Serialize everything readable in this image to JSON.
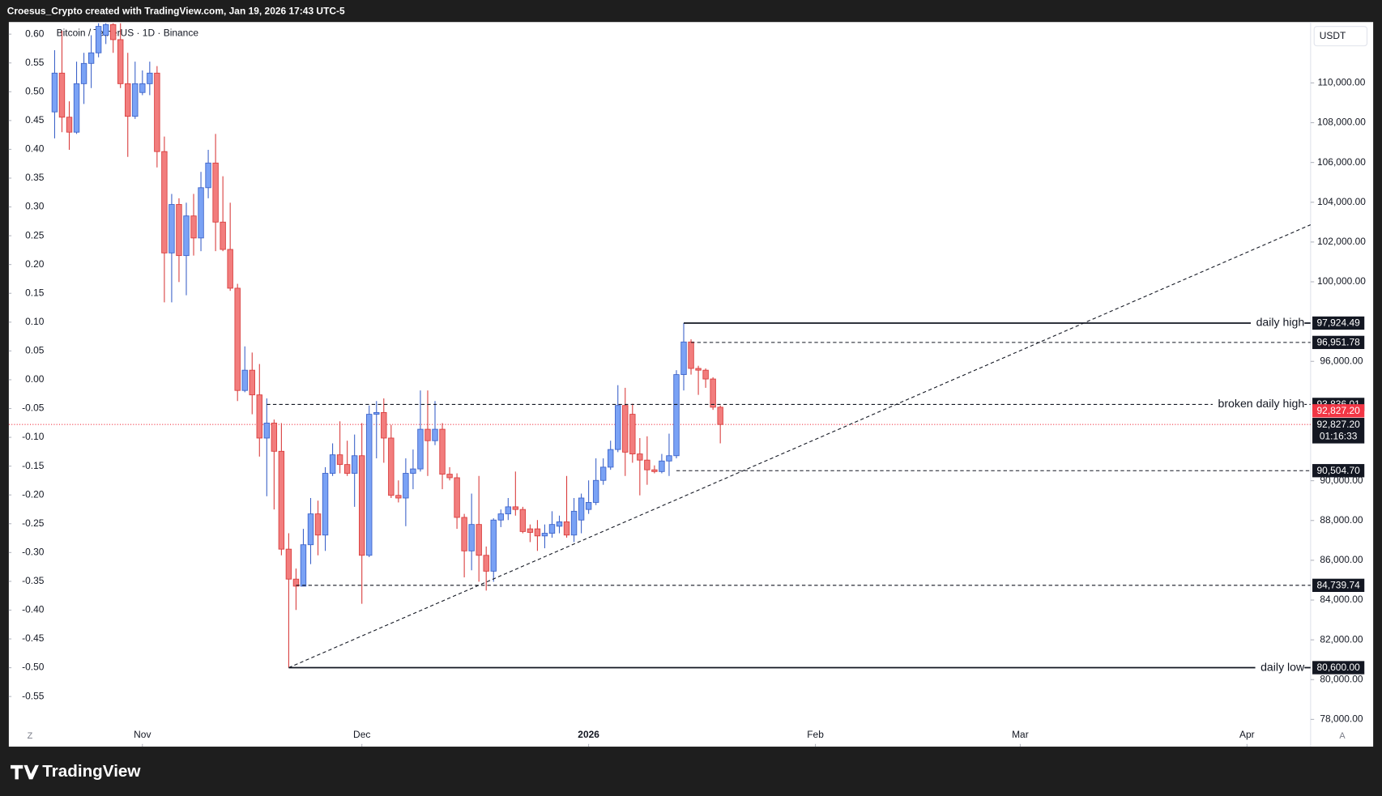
{
  "header": {
    "credit": "Croesus_Crypto created with TradingView.com, Jan 19, 2026 17:43 UTC-5",
    "logo": "TradingView"
  },
  "chart_data": {
    "type": "candlestick",
    "symbol": "Bitcoin / TetherUS · 1D · Binance",
    "currency": "USDT",
    "scale_buttons": [
      "Z",
      "A"
    ],
    "up_color": "#7aa2f5",
    "up_border": "#3d63c9",
    "down_color": "#f27d7d",
    "down_border": "#d93d3d",
    "xlim": [
      -6.265,
      171.7
    ],
    "xticks": [
      {
        "value": 12,
        "label": "Nov"
      },
      {
        "value": 42,
        "label": "Dec"
      },
      {
        "value": 73,
        "label": "2026"
      },
      {
        "value": 104,
        "label": "Feb"
      },
      {
        "value": 132,
        "label": "Mar"
      },
      {
        "value": 163,
        "label": "Apr"
      }
    ],
    "ylim": [
      76630,
      113060
    ],
    "yticks": [
      {
        "value": 110000,
        "label": "110,000.00"
      },
      {
        "value": 108000,
        "label": "108,000.00"
      },
      {
        "value": 106000,
        "label": "106,000.00"
      },
      {
        "value": 104000,
        "label": "104,000.00"
      },
      {
        "value": 102000,
        "label": "102,000.00"
      },
      {
        "value": 100000,
        "label": "100,000.00"
      },
      {
        "value": 96000,
        "label": "96,000.00"
      },
      {
        "value": 90000,
        "label": "90,000.00"
      },
      {
        "value": 88000,
        "label": "88,000.00"
      },
      {
        "value": 86000,
        "label": "86,000.00"
      },
      {
        "value": 84000,
        "label": "84,000.00"
      },
      {
        "value": 82000,
        "label": "82,000.00"
      },
      {
        "value": 80000,
        "label": "80,000.00"
      },
      {
        "value": 78000,
        "label": "78,000.00"
      }
    ],
    "y2lim": [
      -0.637,
      0.621
    ],
    "y2ticks": [
      {
        "value": 0.6,
        "label": "0.60"
      },
      0.55,
      {
        "value": 0.5,
        "label": "0.50"
      },
      0.45,
      {
        "value": 0.4,
        "label": "0.40"
      },
      0.35,
      {
        "value": 0.3,
        "label": "0.30"
      },
      0.25,
      {
        "value": 0.2,
        "label": "0.20"
      },
      0.15,
      {
        "value": 0.1,
        "label": "0.10"
      },
      0.05,
      {
        "value": 0,
        "label": "0.00"
      },
      -0.05,
      {
        "value": -0.1,
        "label": "-0.10"
      },
      -0.15,
      {
        "value": -0.2,
        "label": "-0.20"
      },
      -0.25,
      {
        "value": -0.3,
        "label": "-0.30"
      },
      -0.35,
      {
        "value": -0.4,
        "label": "-0.40"
      },
      -0.45,
      {
        "value": -0.5,
        "label": "-0.50"
      },
      -0.55
    ],
    "open": [
      108542,
      110492,
      108276,
      107523,
      109960,
      110980,
      111512,
      112398,
      112930,
      112176,
      109960,
      108320,
      109517,
      109960,
      110492,
      106548,
      101451,
      103888,
      101318,
      103312,
      102204,
      104731,
      105972,
      103002,
      101628,
      99678,
      94537,
      95556,
      94315,
      92144,
      92897,
      91479,
      86559,
      85052,
      84698,
      86781,
      88332,
      87268,
      90371,
      91302,
      90814,
      90371,
      91257,
      86249,
      93340,
      93429,
      92144,
      89263,
      89130,
      90371,
      90592,
      92587,
      92011,
      92587,
      90327,
      90149,
      88155,
      86471,
      87800,
      86249,
      85451,
      88022,
      88332,
      88687,
      88554,
      87579,
      87579,
      87224,
      87357,
      87712,
      87933,
      87268,
      88022,
      88554,
      88908,
      90016,
      90681,
      91568,
      93784,
      93340,
      91346,
      91036,
      90548,
      90460,
      90991,
      91257,
      95335,
      96975,
      95645,
      95556,
      95113,
      93695
    ],
    "high": [
      111644,
      112620,
      109074,
      111068,
      111512,
      112398,
      113000,
      113000,
      113000,
      113000,
      111512,
      111068,
      110625,
      111068,
      110847,
      107301,
      104420,
      104199,
      103977,
      104420,
      105528,
      106636,
      107434,
      105307,
      103977,
      99900,
      96753,
      96443,
      95867,
      94138,
      93074,
      92897,
      87357,
      85584,
      87579,
      89130,
      88997,
      90681,
      91878,
      92986,
      92011,
      92321,
      92897,
      93784,
      94005,
      94138,
      92808,
      90016,
      91124,
      91568,
      94537,
      94537,
      94005,
      92897,
      90681,
      90371,
      88332,
      89352,
      90238,
      86692,
      88111,
      88554,
      89130,
      90460,
      88687,
      87800,
      88022,
      87800,
      88465,
      88244,
      90238,
      89130,
      89352,
      90016,
      91124,
      91124,
      92011,
      94803,
      94670,
      93872,
      92144,
      92232,
      90770,
      91346,
      92365,
      95556,
      97924.49,
      97108,
      95778,
      95645,
      95202,
      93784
    ],
    "low": [
      107212,
      107523,
      106636,
      107434,
      108941,
      109739,
      111290,
      111955,
      111512,
      109739,
      106282,
      108188,
      109384,
      109384,
      105750,
      98969,
      98969,
      99988,
      99324,
      101318,
      101540,
      104199,
      101540,
      101540,
      99545,
      94005,
      94448,
      93340,
      91213,
      89219,
      88554,
      86249,
      80600,
      83501,
      84698,
      85806,
      86249,
      86471,
      90238,
      90371,
      90238,
      88687,
      83812,
      86160,
      91124,
      90903,
      89130,
      88908,
      87712,
      89573,
      90460,
      90238,
      91789,
      89573,
      90016,
      87579,
      85141,
      85496,
      84920,
      84476,
      84920,
      87667,
      88022,
      88244,
      87357,
      86914,
      86471,
      86604,
      87136,
      87357,
      87136,
      86914,
      87357,
      88332,
      88775,
      89795,
      90548,
      91435,
      90238,
      90903,
      89263,
      89795,
      90371,
      90371,
      90238,
      91124,
      94537,
      95335,
      94315,
      94670,
      93562,
      91878
    ],
    "close": [
      110492,
      108276,
      107523,
      109960,
      110980,
      111512,
      112841,
      112930,
      112176,
      109960,
      108320,
      109960,
      109960,
      110492,
      106548,
      101451,
      103888,
      101318,
      103312,
      102204,
      104731,
      105972,
      103002,
      101628,
      99678,
      94537,
      95556,
      94315,
      92144,
      92897,
      91479,
      86559,
      85052,
      84698,
      86781,
      88332,
      87268,
      90371,
      91302,
      90814,
      90371,
      91257,
      86249,
      93340,
      93429,
      92144,
      89263,
      89130,
      90371,
      90592,
      92587,
      92011,
      92587,
      90327,
      90149,
      88155,
      86471,
      87800,
      86249,
      85451,
      88022,
      88332,
      88687,
      88554,
      87446,
      87401,
      87224,
      87357,
      87800,
      87933,
      87268,
      88465,
      89130,
      88908,
      90016,
      90681,
      91568,
      93784,
      91435,
      91346,
      91036,
      90548,
      90460,
      90991,
      91257,
      95335,
      96975,
      95645,
      95556,
      95113,
      93695,
      92827.2
    ],
    "levels": [
      {
        "value": 97924.49,
        "label": "97,924.49",
        "text": "daily high",
        "start": 86,
        "style": "solid"
      },
      {
        "value": 96951.78,
        "label": "96,951.78",
        "start": 87,
        "style": "dashed"
      },
      {
        "value": 93836.01,
        "label": "93,836.01",
        "text": "broken daily high",
        "start": 29,
        "style": "dashed"
      },
      {
        "value": 90504.7,
        "label": "90,504.70",
        "start": 85,
        "style": "dashed"
      },
      {
        "value": 84739.74,
        "label": "84,739.74",
        "start": 33,
        "style": "dashed"
      },
      {
        "value": 80600,
        "label": "80,600.00",
        "text": "daily low",
        "start": 32,
        "style": "solid"
      }
    ],
    "trendline": {
      "x": [
        32,
        171.7
      ],
      "y": [
        80600,
        102869
      ]
    },
    "last_price": {
      "value": 92827.2,
      "label": "92,827.20",
      "color": "#f23645",
      "countdown": "01:16:33"
    }
  }
}
